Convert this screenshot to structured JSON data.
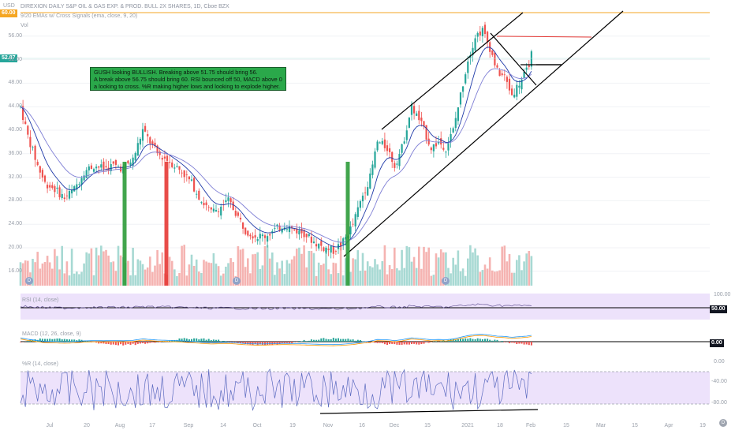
{
  "header": {
    "symbol_badge": "USD",
    "title": "DIREXION DAILY S&P OIL & GAS EXP. & PROD. BULL 2X SHARES, 1D, Cboe BZX",
    "indicator": "9/20 EMAs w/ Cross Signals (ema, close, 9, 20)",
    "vol": "Vol"
  },
  "note": [
    "GUSH looking BULLISH. Breaking above 51.75 should bring 56.",
    "A break above 56.75 should bring 60. RSI bounced off 50, MACD above 0",
    "a looking to cross. %R making higher lows and looking to explode higher."
  ],
  "price_tag": "52.87",
  "top_tag": "60.00",
  "panels": {
    "rsi": {
      "label": "RSI (14, close)",
      "value": "50.00"
    },
    "macd": {
      "label": "MACD (12, 26, close, 9)",
      "value": "0.00"
    },
    "wr": {
      "label": "%R (14, close)"
    }
  },
  "badges": [
    "D",
    "D",
    "D",
    "D"
  ],
  "colors": {
    "up": "#26a69a",
    "down": "#ef5350",
    "ema_fast": "#1f3aa8",
    "ema_slow": "#7f7fd5",
    "level_orange": "#f5a623",
    "level_red": "#e53935",
    "panel_bg": "#ede2fb"
  },
  "chart_data": {
    "type": "candlestick",
    "title": "DIREXION DAILY S&P OIL & GAS EXP. & PROD. BULL 2X SHARES, 1D, Cboe BZX",
    "y_ticks": [
      "56.00",
      "52.00",
      "48.00",
      "44.00",
      "40.00",
      "36.00",
      "32.00",
      "28.00",
      "24.00",
      "20.00",
      "16.00"
    ],
    "x_ticks": [
      "Jul",
      "20",
      "Aug",
      "17",
      "Sep",
      "14",
      "Oct",
      "19",
      "Nov",
      "16",
      "Dec",
      "15",
      "2021",
      "18",
      "Feb",
      "15",
      "Mar",
      "15",
      "Apr",
      "19"
    ],
    "ylim": [
      14,
      60
    ],
    "last_price": 52.87,
    "levels": [
      60,
      56.75,
      51.75
    ],
    "price_path": [
      [
        0,
        44
      ],
      [
        3,
        39
      ],
      [
        7,
        34
      ],
      [
        10,
        31
      ],
      [
        14,
        30
      ],
      [
        18,
        28.5
      ],
      [
        22,
        30
      ],
      [
        26,
        33
      ],
      [
        30,
        34
      ],
      [
        34,
        33.5
      ],
      [
        38,
        34
      ],
      [
        42,
        33.5
      ],
      [
        46,
        35
      ],
      [
        50,
        40
      ],
      [
        53,
        38
      ],
      [
        56,
        36
      ],
      [
        60,
        35
      ],
      [
        63,
        34
      ],
      [
        66,
        33
      ],
      [
        70,
        31
      ],
      [
        74,
        28
      ],
      [
        78,
        26
      ],
      [
        82,
        27
      ],
      [
        85,
        28
      ],
      [
        88,
        26
      ],
      [
        92,
        23
      ],
      [
        96,
        22
      ],
      [
        100,
        22
      ],
      [
        104,
        23
      ],
      [
        108,
        24
      ],
      [
        112,
        23
      ],
      [
        116,
        22.5
      ],
      [
        120,
        21
      ],
      [
        124,
        20
      ],
      [
        128,
        19.5
      ],
      [
        132,
        21
      ],
      [
        136,
        24
      ],
      [
        140,
        29
      ],
      [
        143,
        32
      ],
      [
        146,
        38
      ],
      [
        150,
        37
      ],
      [
        153,
        34
      ],
      [
        156,
        37
      ],
      [
        160,
        44
      ],
      [
        164,
        41
      ],
      [
        168,
        37
      ],
      [
        171,
        38
      ],
      [
        174,
        37
      ],
      [
        177,
        40
      ],
      [
        180,
        46
      ],
      [
        183,
        52
      ],
      [
        186,
        56
      ],
      [
        189,
        57
      ],
      [
        192,
        54
      ],
      [
        195,
        50
      ],
      [
        198,
        49
      ],
      [
        201,
        46
      ],
      [
        204,
        48
      ],
      [
        207,
        50
      ],
      [
        209,
        52.87
      ]
    ],
    "rsi": {
      "label": "RSI (14, close)",
      "ylim": [
        0,
        100
      ],
      "ticks": [
        "100.00",
        "50.00"
      ]
    },
    "macd": {
      "label": "MACD (12, 26, close, 9)",
      "ticks": [
        "0.00"
      ]
    },
    "williams_r": {
      "label": "%R (14, close)",
      "ylim": [
        -100,
        0
      ],
      "ticks": [
        "0.00",
        "-40.00",
        "-80.00"
      ]
    }
  }
}
